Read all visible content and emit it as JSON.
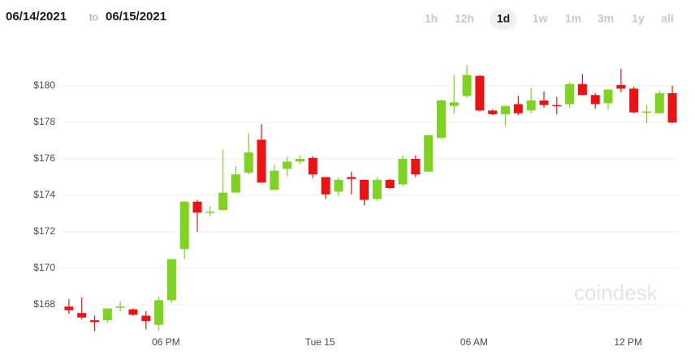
{
  "header": {
    "start_date": "06/14/2021",
    "to": "to",
    "end_date": "06/15/2021",
    "ranges": [
      "1h",
      "12h",
      "1d",
      "1w",
      "1m",
      "3m",
      "1y",
      "all"
    ],
    "selected": "1d"
  },
  "chart_data": {
    "type": "candlestick",
    "watermark": "coindesk",
    "categories": [
      null,
      null,
      null,
      null,
      null,
      null,
      null,
      null,
      "06 PM",
      null,
      null,
      null,
      null,
      null,
      null,
      null,
      null,
      null,
      null,
      null,
      "Tue 15",
      null,
      null,
      null,
      null,
      null,
      null,
      null,
      null,
      null,
      null,
      null,
      "06 AM",
      null,
      null,
      null,
      null,
      null,
      null,
      null,
      null,
      null,
      null,
      null,
      "12 PM",
      null,
      null,
      null
    ],
    "open": [
      167.9,
      167.55,
      167.15,
      167.15,
      167.85,
      167.75,
      167.4,
      166.9,
      168.25,
      171.05,
      173.65,
      173.1,
      173.2,
      174.15,
      175.25,
      177.05,
      174.3,
      175.45,
      175.85,
      176.05,
      175.0,
      174.2,
      175.0,
      174.85,
      173.8,
      174.85,
      174.6,
      176.0,
      175.3,
      177.15,
      178.9,
      179.45,
      180.55,
      178.65,
      178.45,
      179.0,
      178.65,
      179.2,
      178.95,
      179.0,
      180.1,
      179.5,
      179.05,
      180.05,
      179.85,
      178.55,
      178.5,
      179.6
    ],
    "high": [
      168.3,
      168.4,
      167.4,
      167.8,
      168.2,
      167.8,
      167.65,
      168.45,
      170.5,
      173.7,
      173.75,
      173.4,
      176.5,
      175.6,
      177.4,
      177.9,
      175.7,
      176.1,
      176.2,
      176.15,
      175.0,
      175.0,
      175.3,
      174.85,
      175.0,
      174.9,
      176.2,
      176.2,
      177.3,
      179.25,
      180.6,
      181.15,
      180.6,
      178.7,
      178.95,
      179.45,
      179.9,
      179.7,
      179.4,
      180.2,
      180.65,
      179.6,
      179.8,
      180.95,
      179.95,
      178.95,
      179.75,
      180.0
    ],
    "low": [
      167.5,
      167.2,
      166.55,
      167.0,
      167.65,
      167.4,
      166.65,
      166.6,
      168.1,
      170.5,
      172.0,
      172.85,
      173.15,
      174.15,
      175.15,
      174.7,
      174.3,
      175.05,
      175.7,
      174.95,
      173.8,
      173.95,
      174.05,
      173.45,
      173.7,
      174.35,
      174.5,
      175.0,
      175.3,
      177.1,
      178.5,
      179.35,
      178.6,
      178.4,
      177.8,
      178.4,
      178.5,
      178.8,
      178.45,
      178.8,
      179.5,
      178.75,
      178.7,
      179.65,
      178.5,
      177.95,
      178.5,
      177.95
    ],
    "close": [
      167.7,
      167.3,
      167.05,
      167.8,
      167.9,
      167.45,
      167.1,
      168.25,
      170.5,
      173.65,
      173.05,
      173.1,
      174.15,
      175.15,
      176.35,
      174.7,
      175.35,
      175.85,
      176.0,
      175.15,
      174.05,
      174.85,
      174.9,
      173.75,
      174.85,
      174.4,
      176.0,
      175.15,
      177.3,
      179.2,
      179.1,
      180.6,
      178.65,
      178.45,
      178.9,
      178.5,
      179.2,
      178.95,
      178.9,
      180.1,
      179.5,
      179.0,
      179.8,
      179.85,
      178.55,
      178.6,
      179.6,
      178.0
    ],
    "up_color": "#7ed321",
    "down_color": "#ee1111",
    "ylim": [
      166.5,
      182
    ],
    "yticks": [
      {
        "value": 168,
        "label": "$168"
      },
      {
        "value": 170,
        "label": "$170"
      },
      {
        "value": 172,
        "label": "$172"
      },
      {
        "value": 174,
        "label": "$174"
      },
      {
        "value": 176,
        "label": "$176"
      },
      {
        "value": 178,
        "label": "$178"
      },
      {
        "value": 180,
        "label": "$180"
      }
    ],
    "grid": true
  }
}
